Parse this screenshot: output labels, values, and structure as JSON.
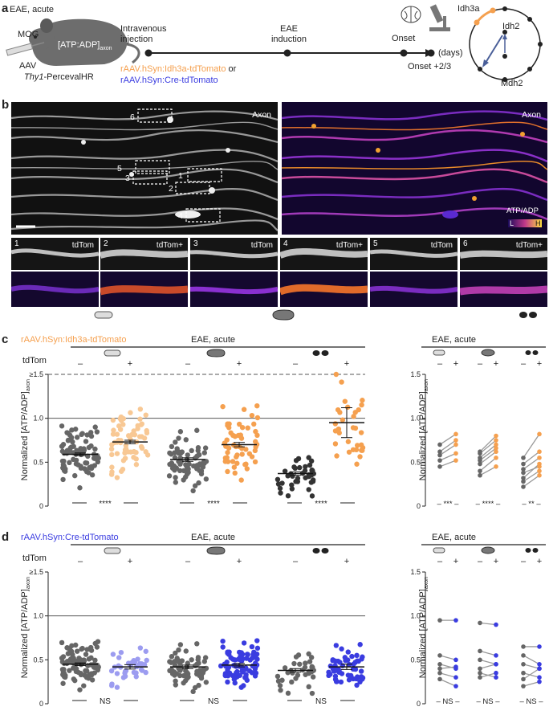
{
  "panel_a": {
    "letter": "a",
    "mouse": {
      "condition": "EAE, acute",
      "antigen": "MOG",
      "sensor": "[ATP:ADP]",
      "sensor_sub": "axon",
      "vector": "AAV",
      "line_italic": "Thy1",
      "line_rest": "-PercevalHR"
    },
    "timeline": {
      "steps": [
        "Intravenous injection",
        "EAE induction",
        "Onset",
        "Onset +2/3"
      ],
      "unit": "(days)",
      "vector_orange": "rAAV.hSyn:Idh3a-tdTomato",
      "vector_or": " or",
      "vector_blue": "rAAV.hSyn:Cre-tdTomato"
    },
    "cycle": {
      "labels": [
        "Idh3a",
        "Idh2",
        "Mdh2"
      ]
    }
  },
  "panel_b": {
    "letter": "b",
    "left_label": "Axon",
    "right_label": "Axon",
    "roi_numbers": [
      "6",
      "5",
      "3",
      "2",
      "1",
      "4"
    ],
    "colorbar": {
      "title": "ATP/ADP",
      "low": "L",
      "high": "H"
    },
    "insets": [
      {
        "num": "1",
        "label": "tdTom"
      },
      {
        "num": "2",
        "label": "tdTom+"
      },
      {
        "num": "3",
        "label": "tdTom"
      },
      {
        "num": "4",
        "label": "tdTom+"
      },
      {
        "num": "5",
        "label": "tdTom"
      },
      {
        "num": "6",
        "label": "tdTom+"
      }
    ]
  },
  "panel_c": {
    "letter": "c",
    "title": "rAAV.hSyn:Idh3a-tdTomato",
    "group_label": "EAE, acute",
    "row_label": "tdTom",
    "ylabel": "Normalized [ATP/ADP]",
    "ylabel_sub": "axon",
    "right_group_label": "EAE, acute"
  },
  "panel_d": {
    "letter": "d",
    "title": "rAAV.hSyn:Cre-tdTomato",
    "group_label": "EAE, acute",
    "row_label": "tdTom",
    "ylabel": "Normalized [ATP/ADP]",
    "ylabel_sub": "axon",
    "right_group_label": "EAE, acute"
  },
  "colors": {
    "orange": "#f5a04f",
    "light_orange": "#f8c894",
    "grey": "#666666",
    "dark": "#333333",
    "blue": "#3a3ce0",
    "light_blue": "#9c9cf0",
    "sig": "#222222"
  },
  "chart_data": [
    {
      "type": "scatter",
      "title": "",
      "ylabel": "Normalized [ATP/ADP]axon",
      "ylim": [
        0,
        1.5
      ],
      "yticks": [
        "0",
        "0.5",
        "1.0",
        "≥1.5"
      ],
      "reference_line": 1.0,
      "dashed_line": 1.5,
      "categories": [
        "–",
        "+",
        "–",
        "+",
        "–",
        "+"
      ],
      "axon_shape": [
        "normal",
        "normal",
        "swollen",
        "swollen",
        "fragmented",
        "fragmented"
      ],
      "series": [
        {
          "mean": 0.59,
          "sem": 0.015,
          "n": 80
        },
        {
          "mean": 0.73,
          "sem": 0.02,
          "n": 62
        },
        {
          "mean": 0.53,
          "sem": 0.02,
          "n": 70
        },
        {
          "mean": 0.7,
          "sem": 0.025,
          "n": 55
        },
        {
          "mean": 0.37,
          "sem": 0.02,
          "n": 40
        },
        {
          "mean": 0.95,
          "sem": 0.17,
          "n": 32
        }
      ],
      "significance": [
        "****",
        "****",
        "****"
      ]
    },
    {
      "type": "line",
      "title": "",
      "ylim": [
        0,
        1.5
      ],
      "yticks": [
        "0",
        "0.5",
        "1.0",
        "1.5"
      ],
      "groups": [
        {
          "pairs": [
            [
              0.45,
              0.52
            ],
            [
              0.52,
              0.6
            ],
            [
              0.58,
              0.7
            ],
            [
              0.62,
              0.75
            ],
            [
              0.7,
              0.82
            ]
          ],
          "significance": "***"
        },
        {
          "pairs": [
            [
              0.35,
              0.45
            ],
            [
              0.4,
              0.55
            ],
            [
              0.48,
              0.62
            ],
            [
              0.52,
              0.66
            ],
            [
              0.55,
              0.7
            ],
            [
              0.6,
              0.75
            ],
            [
              0.62,
              0.8
            ]
          ],
          "significance": "****"
        },
        {
          "pairs": [
            [
              0.22,
              0.35
            ],
            [
              0.28,
              0.4
            ],
            [
              0.32,
              0.48
            ],
            [
              0.38,
              0.45
            ],
            [
              0.42,
              0.55
            ],
            [
              0.48,
              0.62
            ],
            [
              0.55,
              0.82
            ]
          ],
          "significance": "**"
        }
      ]
    },
    {
      "type": "scatter",
      "title": "",
      "ylabel": "Normalized [ATP/ADP]axon",
      "ylim": [
        0,
        1.5
      ],
      "yticks": [
        "0",
        "0.5",
        "1.0",
        "≥1.5"
      ],
      "reference_line": 1.0,
      "categories": [
        "–",
        "+",
        "–",
        "+",
        "–",
        "+"
      ],
      "series": [
        {
          "mean": 0.45,
          "sem": 0.015,
          "n": 85
        },
        {
          "mean": 0.42,
          "sem": 0.025,
          "n": 35
        },
        {
          "mean": 0.42,
          "sem": 0.02,
          "n": 65
        },
        {
          "mean": 0.44,
          "sem": 0.02,
          "n": 75
        },
        {
          "mean": 0.38,
          "sem": 0.02,
          "n": 35
        },
        {
          "mean": 0.42,
          "sem": 0.03,
          "n": 55
        }
      ],
      "significance": [
        "NS",
        "NS",
        "NS"
      ]
    },
    {
      "type": "line",
      "title": "",
      "ylim": [
        0,
        1.5
      ],
      "yticks": [
        "0",
        "0.5",
        "1.0",
        "1.5"
      ],
      "groups": [
        {
          "pairs": [
            [
              0.95,
              0.95
            ],
            [
              0.55,
              0.5
            ],
            [
              0.45,
              0.4
            ],
            [
              0.4,
              0.42
            ],
            [
              0.35,
              0.3
            ],
            [
              0.28,
              0.2
            ]
          ],
          "significance": "NS"
        },
        {
          "pairs": [
            [
              0.92,
              0.9
            ],
            [
              0.6,
              0.55
            ],
            [
              0.5,
              0.45
            ],
            [
              0.4,
              0.45
            ],
            [
              0.35,
              0.3
            ],
            [
              0.3,
              0.35
            ]
          ],
          "significance": "NS"
        },
        {
          "pairs": [
            [
              0.65,
              0.65
            ],
            [
              0.55,
              0.45
            ],
            [
              0.45,
              0.4
            ],
            [
              0.35,
              0.3
            ],
            [
              0.28,
              0.4
            ],
            [
              0.2,
              0.25
            ]
          ],
          "significance": "NS"
        }
      ]
    }
  ]
}
